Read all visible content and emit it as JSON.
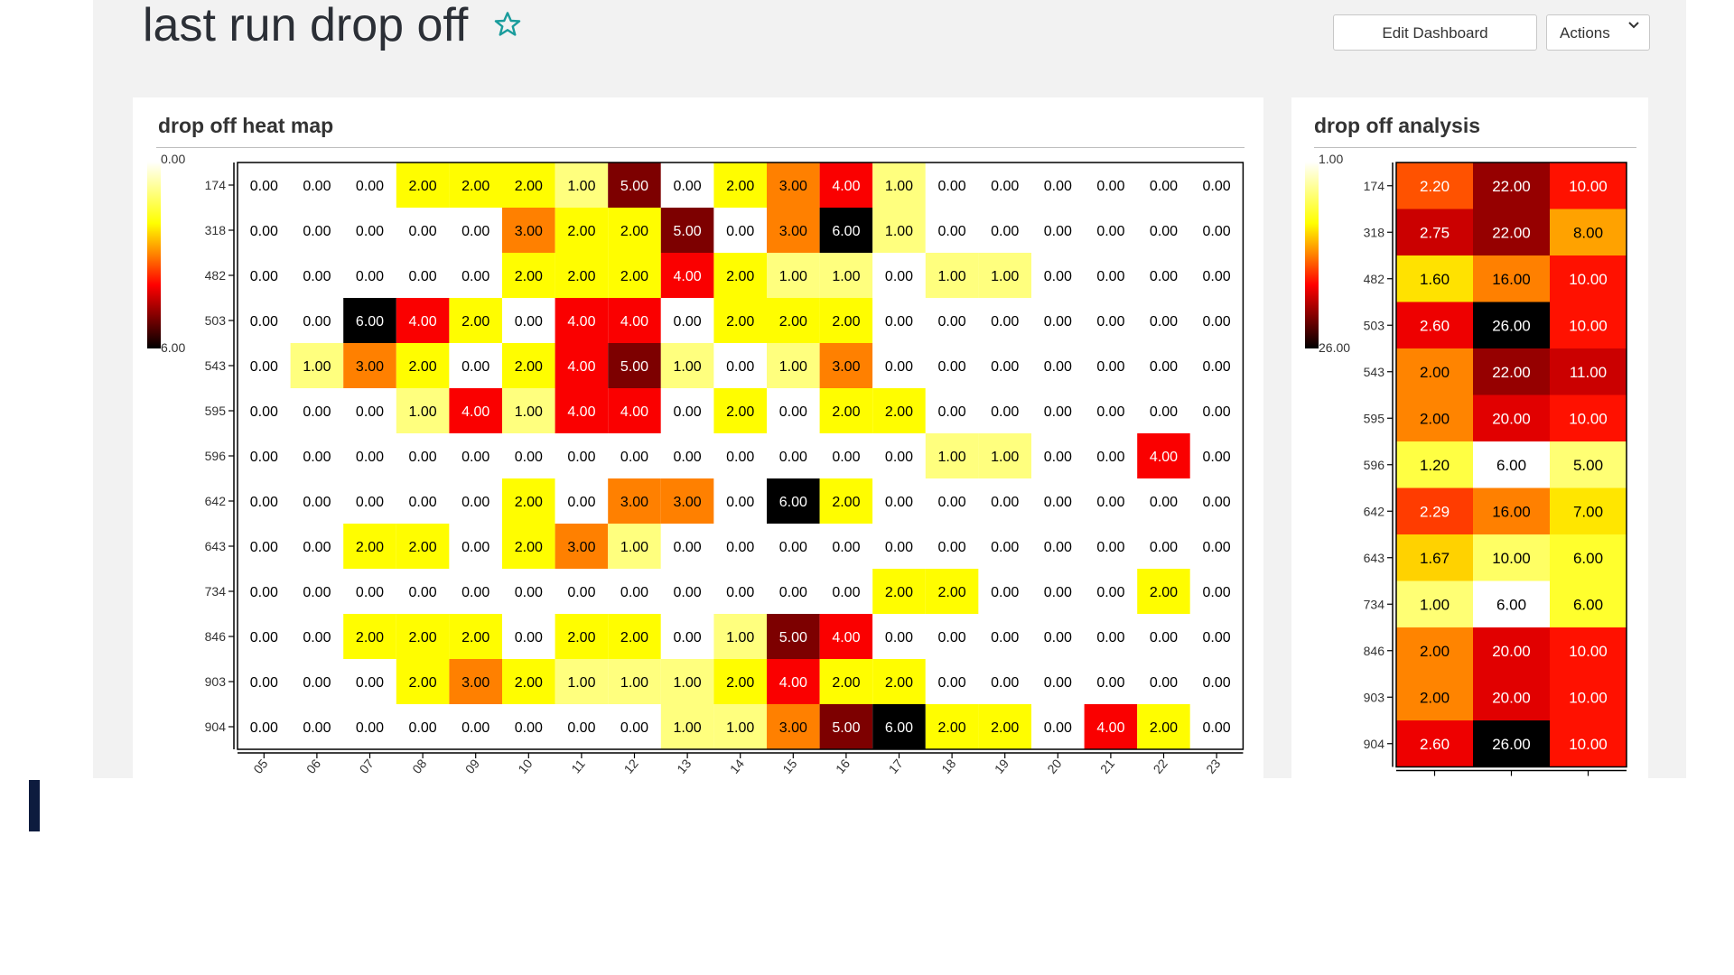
{
  "dashboard": {
    "title": "last run drop off",
    "star_icon": "star-outline-icon",
    "accent_color": "#1a9c9c",
    "edit_label": "Edit Dashboard",
    "actions_label": "Actions",
    "actions_icon": "chevron-down-icon"
  },
  "heatmap_panel": {
    "title": "drop off heat map"
  },
  "analysis_panel": {
    "title": "drop off analysis"
  },
  "chart_data": [
    {
      "type": "heatmap",
      "title": "drop off heat map",
      "x": [
        "05",
        "06",
        "07",
        "08",
        "09",
        "10",
        "11",
        "12",
        "13",
        "14",
        "15",
        "16",
        "17",
        "18",
        "19",
        "20",
        "21",
        "22",
        "23"
      ],
      "y": [
        "174",
        "318",
        "482",
        "503",
        "543",
        "595",
        "596",
        "642",
        "643",
        "734",
        "846",
        "903",
        "904"
      ],
      "values": [
        [
          0,
          0,
          0,
          2,
          2,
          2,
          1,
          5,
          0,
          2,
          3,
          4,
          1,
          0,
          0,
          0,
          0,
          0,
          0
        ],
        [
          0,
          0,
          0,
          0,
          0,
          3,
          2,
          2,
          5,
          0,
          3,
          6,
          1,
          0,
          0,
          0,
          0,
          0,
          0
        ],
        [
          0,
          0,
          0,
          0,
          0,
          2,
          2,
          2,
          4,
          2,
          1,
          1,
          0,
          1,
          1,
          0,
          0,
          0,
          0
        ],
        [
          0,
          0,
          6,
          4,
          2,
          0,
          4,
          4,
          0,
          2,
          2,
          2,
          0,
          0,
          0,
          0,
          0,
          0,
          0
        ],
        [
          0,
          1,
          3,
          2,
          0,
          2,
          4,
          5,
          1,
          0,
          1,
          3,
          0,
          0,
          0,
          0,
          0,
          0,
          0
        ],
        [
          0,
          0,
          0,
          1,
          4,
          1,
          4,
          4,
          0,
          2,
          0,
          2,
          2,
          0,
          0,
          0,
          0,
          0,
          0
        ],
        [
          0,
          0,
          0,
          0,
          0,
          0,
          0,
          0,
          0,
          0,
          0,
          0,
          0,
          1,
          1,
          0,
          0,
          4,
          0
        ],
        [
          0,
          0,
          0,
          0,
          0,
          2,
          0,
          3,
          3,
          0,
          6,
          2,
          0,
          0,
          0,
          0,
          0,
          0,
          0
        ],
        [
          0,
          0,
          2,
          2,
          0,
          2,
          3,
          1,
          0,
          0,
          0,
          0,
          0,
          0,
          0,
          0,
          0,
          0,
          0
        ],
        [
          0,
          0,
          0,
          0,
          0,
          0,
          0,
          0,
          0,
          0,
          0,
          0,
          2,
          2,
          0,
          0,
          0,
          2,
          0
        ],
        [
          0,
          0,
          2,
          2,
          2,
          0,
          2,
          2,
          0,
          1,
          5,
          4,
          0,
          0,
          0,
          0,
          0,
          0,
          0
        ],
        [
          0,
          0,
          0,
          2,
          3,
          2,
          1,
          1,
          1,
          2,
          4,
          2,
          2,
          0,
          0,
          0,
          0,
          0,
          0
        ],
        [
          0,
          0,
          0,
          0,
          0,
          0,
          0,
          0,
          1,
          1,
          3,
          5,
          6,
          2,
          2,
          0,
          4,
          2,
          0
        ]
      ],
      "value_format": "2 decimals",
      "color_scale": {
        "min": 0,
        "max": 6,
        "min_label": "0.00",
        "max_label": "6.00",
        "colormap": "white-yellow-orange-red-black"
      }
    },
    {
      "type": "heatmap",
      "title": "drop off analysis",
      "x": [
        "",
        "",
        ""
      ],
      "y": [
        "174",
        "318",
        "482",
        "503",
        "543",
        "595",
        "596",
        "642",
        "643",
        "734",
        "846",
        "903",
        "904"
      ],
      "columns": [
        {
          "scale": "col-0",
          "values": [
            2.2,
            2.75,
            1.6,
            2.6,
            2.0,
            2.0,
            1.2,
            2.29,
            1.67,
            1.0,
            2.0,
            2.0,
            2.6
          ]
        },
        {
          "scale": "col-1",
          "values": [
            22,
            22,
            16,
            26,
            22,
            20,
            6,
            16,
            10,
            6,
            20,
            20,
            26
          ]
        },
        {
          "scale": "col-2",
          "values": [
            10,
            8,
            10,
            10,
            11,
            10,
            5,
            7,
            6,
            6,
            10,
            10,
            10
          ]
        }
      ],
      "color_scale": {
        "min": 1,
        "max": 26,
        "min_label": "1.00",
        "max_label": "26.00"
      }
    }
  ]
}
